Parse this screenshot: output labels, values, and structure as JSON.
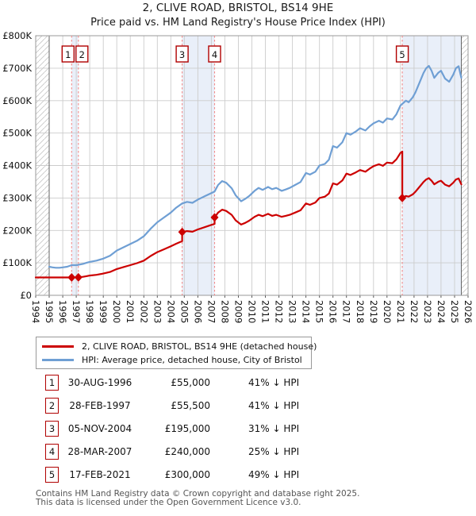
{
  "title": "2, CLIVE ROAD, BRISTOL, BS14 9HE",
  "subtitle": "Price paid vs. HM Land Registry's House Price Index (HPI)",
  "legend": {
    "property_label": "2, CLIVE ROAD, BRISTOL, BS14 9HE (detached house)",
    "hpi_label": "HPI: Average price, detached house, City of Bristol"
  },
  "colors": {
    "property": "#cc0000",
    "hpi": "#6f9fd4",
    "band": "#e9eff9",
    "sale_line": "#f28b8b",
    "grid": "#cccccc",
    "border": "#999999",
    "boundary": "#666666",
    "hatch": "#c8c8c8",
    "badge_border": "#b00000"
  },
  "transactions": [
    {
      "num": "1",
      "date": "30-AUG-1996",
      "price": "£55,000",
      "vs_hpi": "41% ↓ HPI",
      "year": 1996.66,
      "value": 55
    },
    {
      "num": "2",
      "date": "28-FEB-1997",
      "price": "£55,500",
      "vs_hpi": "41% ↓ HPI",
      "year": 1997.16,
      "value": 55.5
    },
    {
      "num": "3",
      "date": "05-NOV-2004",
      "price": "£195,000",
      "vs_hpi": "31% ↓ HPI",
      "year": 2004.84,
      "value": 195
    },
    {
      "num": "4",
      "date": "28-MAR-2007",
      "price": "£240,000",
      "vs_hpi": "25% ↓ HPI",
      "year": 2007.24,
      "value": 240
    },
    {
      "num": "5",
      "date": "17-FEB-2021",
      "price": "£300,000",
      "vs_hpi": "49% ↓ HPI",
      "year": 2021.13,
      "value": 300
    }
  ],
  "chart_data": {
    "type": "line",
    "x_range": [
      1994,
      2026
    ],
    "y_range": [
      0,
      800000
    ],
    "value_unit": "GBP thousands (K)",
    "grid": true,
    "legend_position": "below",
    "x_ticks": [
      "1994",
      "1995",
      "1996",
      "1997",
      "1998",
      "1999",
      "2000",
      "2001",
      "2002",
      "2003",
      "2004",
      "2005",
      "2006",
      "2007",
      "2008",
      "2009",
      "2010",
      "2011",
      "2012",
      "2013",
      "2014",
      "2015",
      "2016",
      "2017",
      "2018",
      "2019",
      "2020",
      "2021",
      "2022",
      "2023",
      "2024",
      "2025",
      "2026"
    ],
    "y_ticks": [
      "£0",
      "£100K",
      "£200K",
      "£300K",
      "£400K",
      "£500K",
      "£600K",
      "£700K",
      "£800K"
    ],
    "data_extent": [
      1995.0,
      2025.5
    ],
    "shaded_bands": [
      [
        1996.66,
        1997.16
      ],
      [
        2004.84,
        2007.24
      ],
      [
        2021.13,
        2025.5
      ]
    ],
    "marker_label_dx": [
      -4.5,
      4.5,
      0,
      0,
      0
    ],
    "series": [
      {
        "name": "hpi",
        "points": [
          [
            1995.0,
            88
          ],
          [
            1995.25,
            86
          ],
          [
            1995.5,
            85
          ],
          [
            1995.75,
            85
          ],
          [
            1996.0,
            86
          ],
          [
            1996.33,
            88
          ],
          [
            1996.66,
            93
          ],
          [
            1997.0,
            93
          ],
          [
            1997.16,
            94
          ],
          [
            1997.5,
            97
          ],
          [
            1997.75,
            100
          ],
          [
            1998.0,
            103
          ],
          [
            1998.5,
            107
          ],
          [
            1999.0,
            113
          ],
          [
            1999.5,
            122
          ],
          [
            2000.0,
            138
          ],
          [
            2000.5,
            148
          ],
          [
            2001.0,
            158
          ],
          [
            2001.5,
            168
          ],
          [
            2002.0,
            182
          ],
          [
            2002.5,
            205
          ],
          [
            2003.0,
            225
          ],
          [
            2003.5,
            240
          ],
          [
            2004.0,
            255
          ],
          [
            2004.4,
            270
          ],
          [
            2004.84,
            283
          ],
          [
            2005.2,
            288
          ],
          [
            2005.6,
            285
          ],
          [
            2006.0,
            295
          ],
          [
            2006.5,
            305
          ],
          [
            2007.0,
            315
          ],
          [
            2007.24,
            320
          ],
          [
            2007.5,
            340
          ],
          [
            2007.8,
            352
          ],
          [
            2008.1,
            347
          ],
          [
            2008.5,
            330
          ],
          [
            2008.8,
            308
          ],
          [
            2009.2,
            290
          ],
          [
            2009.5,
            297
          ],
          [
            2009.8,
            306
          ],
          [
            2010.2,
            322
          ],
          [
            2010.5,
            331
          ],
          [
            2010.8,
            325
          ],
          [
            2011.2,
            334
          ],
          [
            2011.5,
            327
          ],
          [
            2011.8,
            331
          ],
          [
            2012.2,
            322
          ],
          [
            2012.5,
            326
          ],
          [
            2012.8,
            331
          ],
          [
            2013.2,
            340
          ],
          [
            2013.6,
            349
          ],
          [
            2014.0,
            377
          ],
          [
            2014.3,
            372
          ],
          [
            2014.7,
            381
          ],
          [
            2015.0,
            400
          ],
          [
            2015.4,
            405
          ],
          [
            2015.7,
            418
          ],
          [
            2016.0,
            460
          ],
          [
            2016.3,
            455
          ],
          [
            2016.7,
            472
          ],
          [
            2017.0,
            500
          ],
          [
            2017.3,
            495
          ],
          [
            2017.7,
            505
          ],
          [
            2018.0,
            515
          ],
          [
            2018.4,
            508
          ],
          [
            2018.7,
            520
          ],
          [
            2019.0,
            530
          ],
          [
            2019.4,
            538
          ],
          [
            2019.7,
            532
          ],
          [
            2020.0,
            545
          ],
          [
            2020.4,
            542
          ],
          [
            2020.7,
            558
          ],
          [
            2021.0,
            585
          ],
          [
            2021.13,
            590
          ],
          [
            2021.4,
            600
          ],
          [
            2021.6,
            595
          ],
          [
            2021.9,
            610
          ],
          [
            2022.1,
            625
          ],
          [
            2022.4,
            655
          ],
          [
            2022.7,
            685
          ],
          [
            2022.9,
            700
          ],
          [
            2023.1,
            707
          ],
          [
            2023.3,
            692
          ],
          [
            2023.5,
            670
          ],
          [
            2023.8,
            686
          ],
          [
            2024.0,
            692
          ],
          [
            2024.3,
            668
          ],
          [
            2024.6,
            658
          ],
          [
            2024.9,
            680
          ],
          [
            2025.1,
            700
          ],
          [
            2025.3,
            706
          ],
          [
            2025.5,
            670
          ]
        ]
      },
      {
        "name": "price_paid",
        "points": [
          [
            1994.0,
            55
          ],
          [
            1996.66,
            55
          ],
          [
            1997.16,
            55.5
          ],
          [
            1997.5,
            57
          ],
          [
            1997.75,
            59
          ],
          [
            1998.0,
            61
          ],
          [
            1998.5,
            63
          ],
          [
            1999.0,
            67
          ],
          [
            1999.5,
            72
          ],
          [
            2000.0,
            81
          ],
          [
            2000.5,
            87
          ],
          [
            2001.0,
            93
          ],
          [
            2001.5,
            99
          ],
          [
            2002.0,
            107
          ],
          [
            2002.5,
            121
          ],
          [
            2003.0,
            133
          ],
          [
            2003.5,
            142
          ],
          [
            2004.0,
            151
          ],
          [
            2004.4,
            159
          ],
          [
            2004.84,
            167
          ],
          [
            2004.84,
            195
          ],
          [
            2005.2,
            198
          ],
          [
            2005.6,
            196
          ],
          [
            2006.0,
            203
          ],
          [
            2006.5,
            210
          ],
          [
            2007.0,
            217
          ],
          [
            2007.24,
            220
          ],
          [
            2007.24,
            240
          ],
          [
            2007.5,
            255
          ],
          [
            2007.8,
            264
          ],
          [
            2008.1,
            260
          ],
          [
            2008.5,
            248
          ],
          [
            2008.8,
            231
          ],
          [
            2009.2,
            218
          ],
          [
            2009.5,
            223
          ],
          [
            2009.8,
            230
          ],
          [
            2010.2,
            242
          ],
          [
            2010.5,
            248
          ],
          [
            2010.8,
            244
          ],
          [
            2011.2,
            251
          ],
          [
            2011.5,
            245
          ],
          [
            2011.8,
            248
          ],
          [
            2012.2,
            242
          ],
          [
            2012.5,
            245
          ],
          [
            2012.8,
            248
          ],
          [
            2013.2,
            255
          ],
          [
            2013.6,
            262
          ],
          [
            2014.0,
            283
          ],
          [
            2014.3,
            279
          ],
          [
            2014.7,
            286
          ],
          [
            2015.0,
            300
          ],
          [
            2015.4,
            304
          ],
          [
            2015.7,
            314
          ],
          [
            2016.0,
            345
          ],
          [
            2016.3,
            341
          ],
          [
            2016.7,
            354
          ],
          [
            2017.0,
            375
          ],
          [
            2017.3,
            371
          ],
          [
            2017.7,
            379
          ],
          [
            2018.0,
            386
          ],
          [
            2018.4,
            381
          ],
          [
            2018.7,
            390
          ],
          [
            2019.0,
            398
          ],
          [
            2019.4,
            404
          ],
          [
            2019.7,
            399
          ],
          [
            2020.0,
            409
          ],
          [
            2020.4,
            407
          ],
          [
            2020.7,
            419
          ],
          [
            2021.0,
            439
          ],
          [
            2021.13,
            443
          ],
          [
            2021.13,
            300
          ],
          [
            2021.4,
            306
          ],
          [
            2021.6,
            304
          ],
          [
            2021.9,
            311
          ],
          [
            2022.1,
            319
          ],
          [
            2022.4,
            334
          ],
          [
            2022.7,
            349
          ],
          [
            2022.9,
            357
          ],
          [
            2023.1,
            361
          ],
          [
            2023.3,
            353
          ],
          [
            2023.5,
            342
          ],
          [
            2023.8,
            350
          ],
          [
            2024.0,
            353
          ],
          [
            2024.3,
            341
          ],
          [
            2024.6,
            336
          ],
          [
            2024.9,
            347
          ],
          [
            2025.1,
            357
          ],
          [
            2025.3,
            360
          ],
          [
            2025.5,
            342
          ]
        ]
      }
    ]
  },
  "footer": {
    "line1": "Contains HM Land Registry data © Crown copyright and database right 2025.",
    "line2": "This data is licensed under the Open Government Licence v3.0."
  }
}
